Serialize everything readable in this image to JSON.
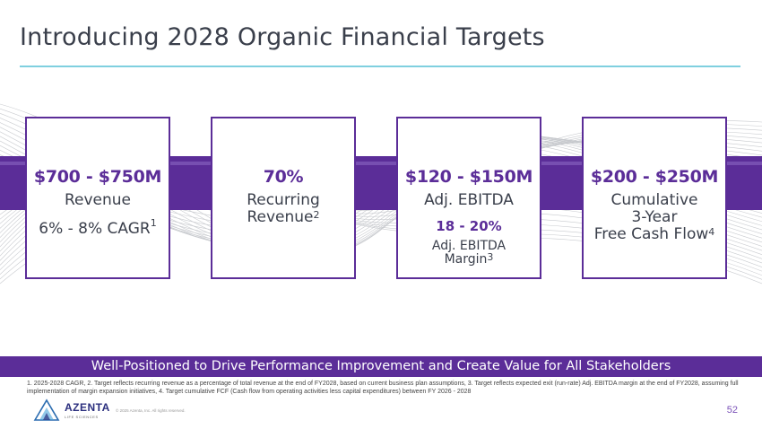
{
  "slide": {
    "title": "Introducing 2028 Organic Financial Targets",
    "page_number": "52"
  },
  "cards": [
    {
      "headline": "$700 - $750M",
      "label": "Revenue",
      "detail": "6% - 8% CAGR",
      "detail_sup": "1"
    },
    {
      "headline": "70%",
      "label_line1": "Recurring",
      "label_line2": "Revenue",
      "label_sup": "2"
    },
    {
      "headline": "$120 - $150M",
      "label": "Adj. EBITDA",
      "sub_headline": "18 - 20%",
      "sub_label_line1": "Adj. EBITDA",
      "sub_label_line2": "Margin",
      "sub_label_sup": "3"
    },
    {
      "headline": "$200 - $250M",
      "label_line1": "Cumulative",
      "label_line2": "3-Year",
      "label_line3": "Free Cash Flow",
      "label_sup": "4"
    }
  ],
  "banner": {
    "text": "Well-Positioned to Drive Performance Improvement and Create Value for All Stakeholders"
  },
  "footnotes": {
    "text": "1. 2025-2028 CAGR, 2. Target reflects recurring revenue as a percentage of total revenue at the end of FY2028, based on current business plan assumptions, 3. Target reflects expected exit (run-rate) Adj. EBITDA margin at the end of FY2028, assuming full implementation of margin expansion initiatives, 4. Target cumulative FCF (Cash flow from operating activities less capital expenditures) between FY 2026 - 2028"
  },
  "branding": {
    "logo_name": "AZENTA",
    "logo_sub": "LIFE SCIENCES",
    "copyright": "© 2025 Azenta, Inc. All rights reserved."
  },
  "colors": {
    "purple": "#5b2d98",
    "teal_rule": "#7fd0df",
    "text": "#3a3f4b"
  }
}
